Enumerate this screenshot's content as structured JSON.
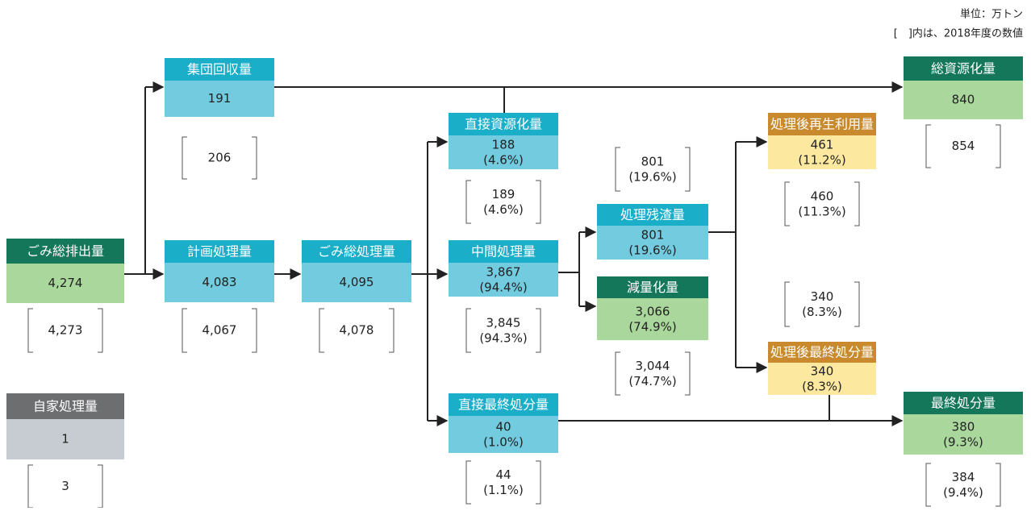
{
  "notes": [
    "単位：万トン",
    "[　]内は、2018年度の数値"
  ],
  "nodes": [
    {
      "label": "ごみ総排出量",
      "value": "4,274",
      "prev_value": "4,273"
    },
    {
      "label": "集団回収量",
      "value": "191",
      "prev_value": "206"
    },
    {
      "label": "計画処理量",
      "value": "4,083",
      "prev_value": "4,067"
    },
    {
      "label": "ごみ総処理量",
      "value": "4,095",
      "prev_value": "4,078"
    },
    {
      "label": "直接資源化量",
      "value": "188",
      "pct": "(4.6%)",
      "prev_value": "189",
      "prev_pct": "(4.6%)"
    },
    {
      "label": "中間処理量",
      "value": "3,867",
      "pct": "(94.4%)",
      "prev_value": "3,845",
      "prev_pct": "(94.3%)"
    },
    {
      "label": "直接最終処分量",
      "value": "40",
      "pct": "(1.0%)",
      "prev_value": "44",
      "prev_pct": "(1.1%)"
    },
    {
      "label": "処理残渣量",
      "value": "801",
      "pct": "(19.6%)",
      "prev_value": "801",
      "prev_pct": "(19.6%)"
    },
    {
      "label": "減量化量",
      "value": "3,066",
      "pct": "(74.9%)",
      "prev_value": "3,044",
      "prev_pct": "(74.7%)"
    },
    {
      "label": "処理後再生利用量",
      "value": "461",
      "pct": "(11.2%)",
      "prev_value": "460",
      "prev_pct": "(11.3%)"
    },
    {
      "label": "処理後最終処分量",
      "value": "340",
      "pct": "(8.3%)",
      "prev_value": "340",
      "prev_pct": "(8.3%)"
    },
    {
      "label": "総資源化量",
      "value": "840",
      "prev_value": "854"
    },
    {
      "label": "最終処分量",
      "value": "380",
      "pct": "(9.3%)",
      "prev_value": "384",
      "prev_pct": "(9.4%)"
    },
    {
      "label": "自家処理量",
      "value": "1",
      "prev_value": "3"
    }
  ]
}
